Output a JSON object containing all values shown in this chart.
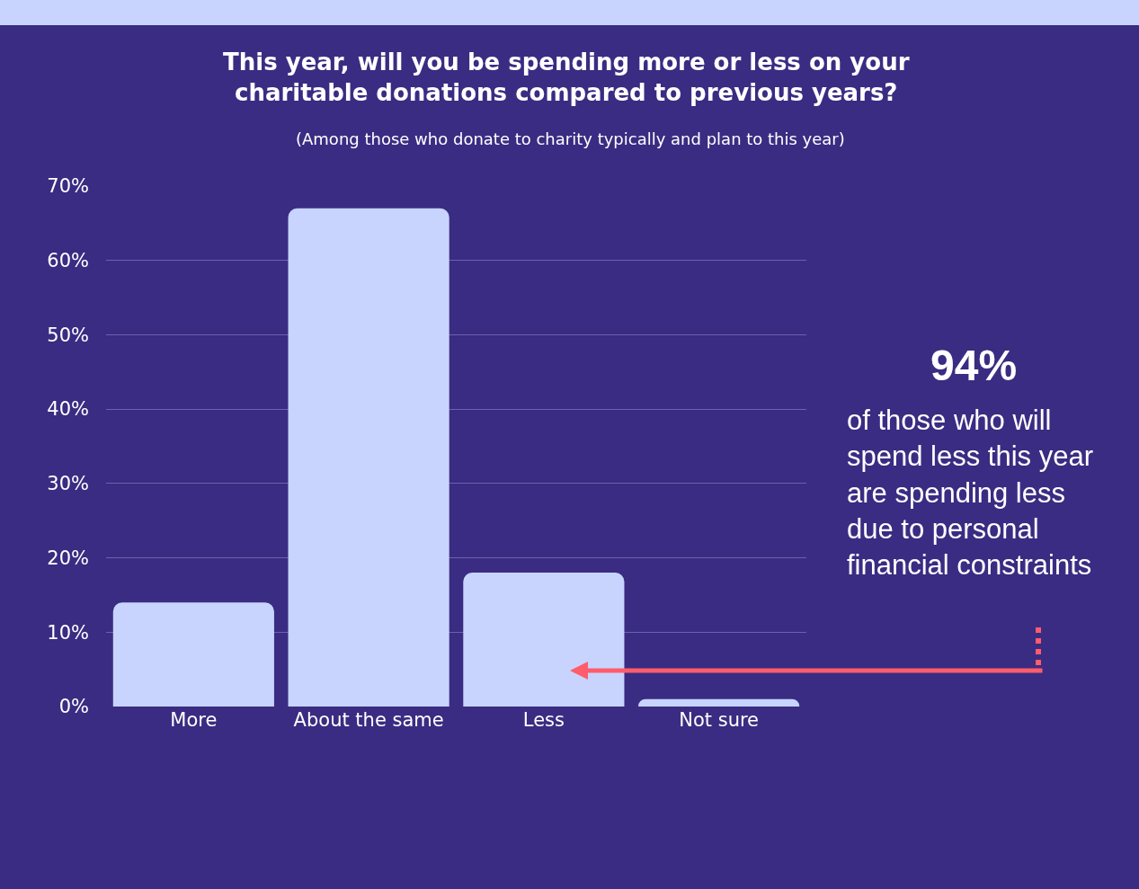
{
  "chart_data": {
    "type": "bar",
    "title": "This year, will you be spending more or less on your\ncharitable donations compared to previous years?",
    "subtitle": "(Among those who donate to charity typically and plan to this year)",
    "categories": [
      "More",
      "About the same",
      "Less",
      "Not sure"
    ],
    "values": [
      14,
      67,
      18,
      1
    ],
    "color": "#c8d4fe",
    "ylim": [
      0,
      70
    ],
    "yticks": [
      {
        "value": 0,
        "label": "0%"
      },
      {
        "value": 10,
        "label": "10%"
      },
      {
        "value": 20,
        "label": "20%"
      },
      {
        "value": 30,
        "label": "30%"
      },
      {
        "value": 40,
        "label": "40%"
      },
      {
        "value": 50,
        "label": "50%"
      },
      {
        "value": 60,
        "label": "60%"
      },
      {
        "value": 70,
        "label": "70%"
      }
    ],
    "grid": "y",
    "annotations": [
      "94%",
      "of those who will\nspend less this year\nare spending less\ndue to personal\nfinancial constraints"
    ]
  }
}
